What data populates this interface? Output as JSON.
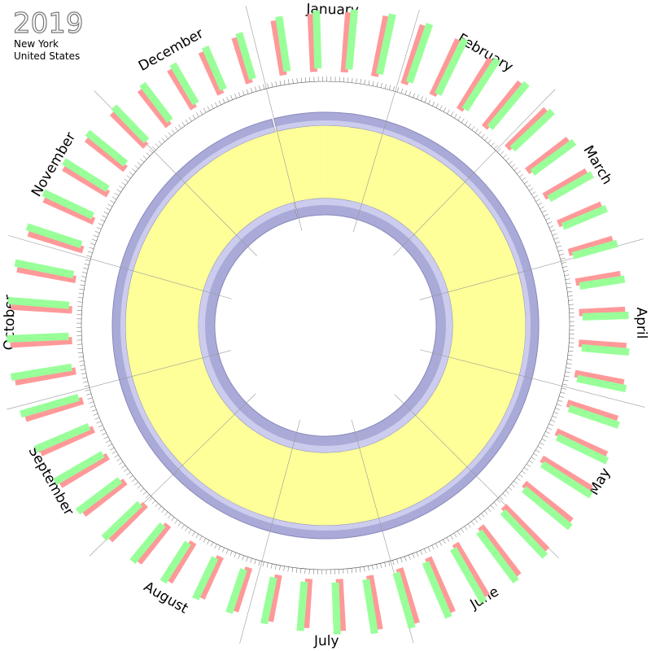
{
  "header": {
    "year": "2019",
    "city": "New York",
    "country": "United States"
  },
  "months": [
    "January",
    "February",
    "March",
    "April",
    "May",
    "June",
    "July",
    "August",
    "September",
    "October",
    "November",
    "December"
  ]
}
